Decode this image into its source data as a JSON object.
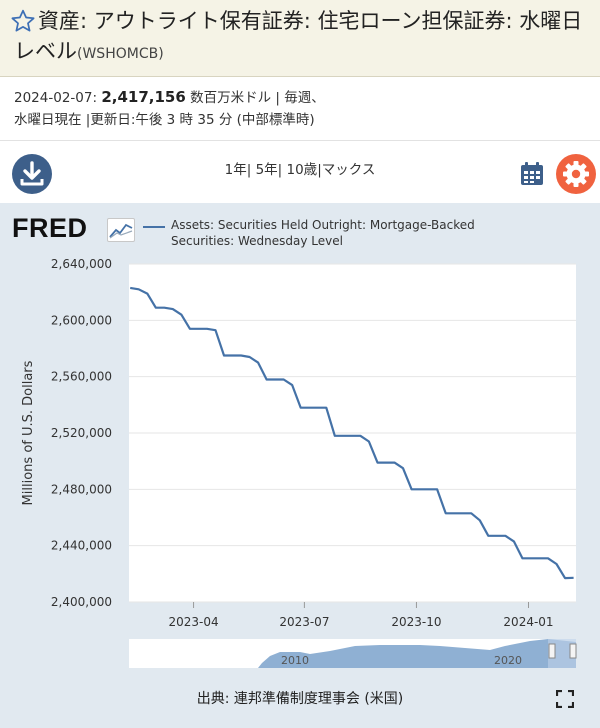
{
  "series": {
    "title": "資産: アウトライト保有証券: 住宅ローン担保証券: 水曜日レベル",
    "code": "(WSHOMCB)"
  },
  "meta": {
    "date": "2024-02-07:",
    "value": "2,417,156",
    "units_frequency": "数百万米ドル | 毎週、",
    "line2": "水曜日現在 |更新日:午後 3 時 35 分 (中部標準時)"
  },
  "toolbar": {
    "ranges": [
      "1年",
      "5年",
      "10歳",
      "マックス"
    ],
    "separators": [
      "| ",
      "| ",
      "|"
    ]
  },
  "logo": {
    "text": "FRED"
  },
  "colors": {
    "line": "#4572a7",
    "download": "#3d5f8a",
    "gear": "#f0623f",
    "panel": "#e1e9f0"
  },
  "chart_data": {
    "type": "line",
    "xlabel": "",
    "ylabel": "Millions of U.S. Dollars",
    "ylim": [
      2400000,
      2640000
    ],
    "yticks": [
      "2,640,000",
      "2,600,000",
      "2,560,000",
      "2,520,000",
      "2,480,000",
      "2,440,000",
      "2,400,000"
    ],
    "xticks": [
      "2023-04",
      "2023-07",
      "2023-10",
      "2024-01"
    ],
    "grid": true,
    "legend_position": "top",
    "series": [
      {
        "name": "Assets: Securities Held Outright: Mortgage-Backed Securities: Wednesday Level",
        "x": [
          "2023-02-08",
          "2023-02-15",
          "2023-02-22",
          "2023-03-01",
          "2023-03-08",
          "2023-03-15",
          "2023-03-22",
          "2023-03-29",
          "2023-04-05",
          "2023-04-12",
          "2023-04-19",
          "2023-04-26",
          "2023-05-03",
          "2023-05-10",
          "2023-05-17",
          "2023-05-24",
          "2023-05-31",
          "2023-06-07",
          "2023-06-14",
          "2023-06-21",
          "2023-06-28",
          "2023-07-05",
          "2023-07-12",
          "2023-07-19",
          "2023-07-26",
          "2023-08-02",
          "2023-08-09",
          "2023-08-16",
          "2023-08-23",
          "2023-08-30",
          "2023-09-06",
          "2023-09-13",
          "2023-09-20",
          "2023-09-27",
          "2023-10-04",
          "2023-10-11",
          "2023-10-18",
          "2023-10-25",
          "2023-11-01",
          "2023-11-08",
          "2023-11-15",
          "2023-11-22",
          "2023-11-29",
          "2023-12-06",
          "2023-12-13",
          "2023-12-20",
          "2023-12-27",
          "2024-01-03",
          "2024-01-10",
          "2024-01-17",
          "2024-01-24",
          "2024-01-31",
          "2024-02-07"
        ],
        "y": [
          2623000,
          2622000,
          2619000,
          2609000,
          2609000,
          2608000,
          2604000,
          2594000,
          2594000,
          2594000,
          2593000,
          2575000,
          2575000,
          2575000,
          2574000,
          2570000,
          2558000,
          2558000,
          2558000,
          2554000,
          2538000,
          2538000,
          2538000,
          2538000,
          2518000,
          2518000,
          2518000,
          2518000,
          2514000,
          2499000,
          2499000,
          2499000,
          2495000,
          2480000,
          2480000,
          2480000,
          2480000,
          2463000,
          2463000,
          2463000,
          2463000,
          2458000,
          2447000,
          2447000,
          2447000,
          2443000,
          2431000,
          2431000,
          2431000,
          2431000,
          2427000,
          2417000,
          2417156
        ]
      }
    ],
    "navigator_xlabels": [
      "2010",
      "2020"
    ]
  },
  "source": "出典: 連邦準備制度理事会 (米国)"
}
